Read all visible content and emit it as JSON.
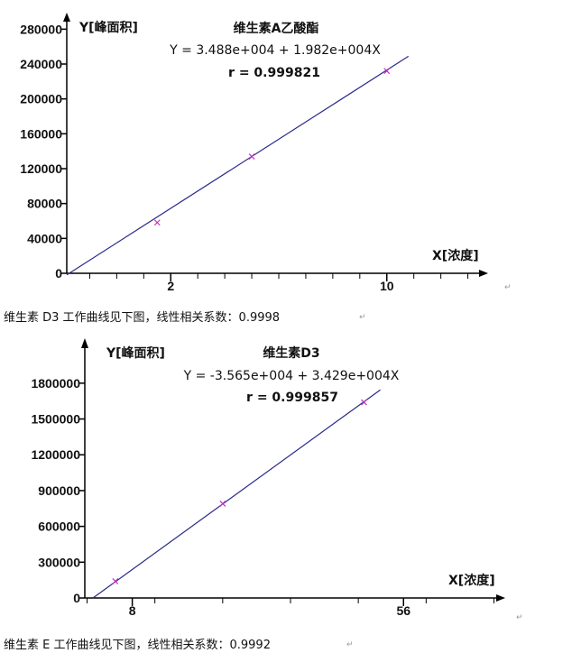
{
  "chart_data": [
    {
      "type": "scatter",
      "title": "维生素A乙酸酯",
      "equation": "Y = 3.488e+004 + 1.982e+004X",
      "r_text": "r = 0.999821",
      "ylabel": "Y[峰面积]",
      "xlabel": "X[浓度]",
      "ylim": [
        0,
        300000
      ],
      "xlim": [
        -1.85,
        13.75
      ],
      "yticks": [
        "0",
        "40000",
        "80000",
        "120000",
        "160000",
        "200000",
        "240000",
        "280000"
      ],
      "xticks": [
        "2",
        "10"
      ],
      "xticks_values": [
        2,
        10
      ],
      "points": [
        {
          "x": 1.5,
          "y": 58200
        },
        {
          "x": 5.0,
          "y": 133900
        },
        {
          "x": 10.0,
          "y": 232000
        }
      ],
      "fit": {
        "intercept": 34880,
        "slope": 19820,
        "x_range": [
          -1.85,
          10.8
        ]
      },
      "line_color": "#2a2a8c",
      "point_color": "#c030c0",
      "grid": false
    },
    {
      "type": "scatter",
      "title": "维生素D3",
      "equation": "Y = -3.565e+004 + 3.429e+004X",
      "r_text": "r = 0.999857",
      "ylabel": "Y[峰面积]",
      "xlabel": "X[浓度]",
      "ylim": [
        0,
        1950000
      ],
      "xlim": [
        -0.4,
        74
      ],
      "yticks": [
        "0",
        "300000",
        "600000",
        "900000",
        "1200000",
        "1500000",
        "1800000"
      ],
      "xticks": [
        "8",
        "56"
      ],
      "xticks_values": [
        8,
        56
      ],
      "points": [
        {
          "x": 5,
          "y": 140000
        },
        {
          "x": 24,
          "y": 790000
        },
        {
          "x": 49,
          "y": 1640000
        }
      ],
      "fit": {
        "intercept": -35650,
        "slope": 34290,
        "x_range": [
          1.04,
          51.9
        ]
      },
      "line_color": "#2a2a8c",
      "point_color": "#c030c0",
      "grid": false
    }
  ],
  "captions": [
    "维生素 D3 工作曲线见下图，线性相关系数：0.9998",
    "维生素 E 工作曲线见下图，线性相关系数：0.9992"
  ],
  "para_mark": "↵"
}
